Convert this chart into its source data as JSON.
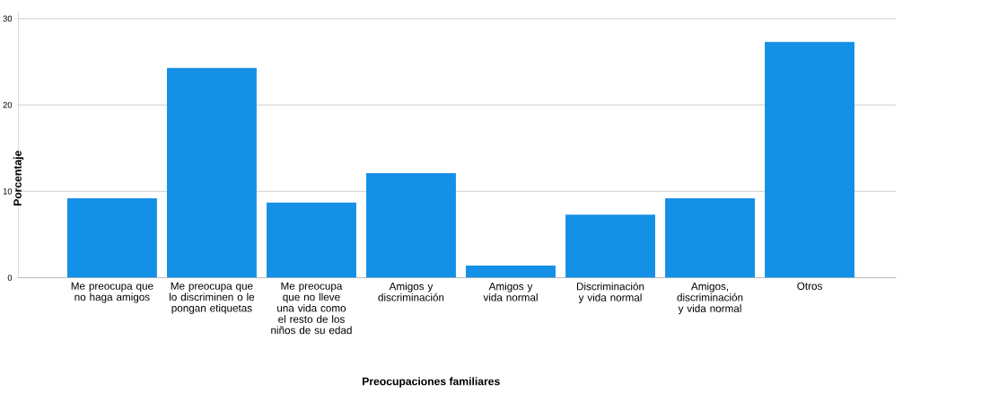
{
  "chart_data": {
    "type": "bar",
    "xlabel": "Preocupaciones familiares",
    "ylabel": "Porcentaje",
    "categories": [
      "Me preocupa que no haga amigos",
      "Me preocupa que lo discriminen o le pongan etiquetas",
      "Me preocupa que no lleve una vida como el resto de los niños de su edad",
      "Amigos y discriminación",
      "Amigos y vida normal",
      "Discriminación y vida normal",
      "Amigos, discriminación y vida normal",
      "Otros"
    ],
    "values": [
      9.2,
      24.3,
      8.7,
      12.1,
      1.4,
      7.3,
      9.2,
      27.3
    ],
    "color": "#1490e6",
    "ylim": [
      0,
      30.8
    ],
    "yticks": [
      0,
      10,
      20,
      30
    ],
    "grid": "y"
  }
}
